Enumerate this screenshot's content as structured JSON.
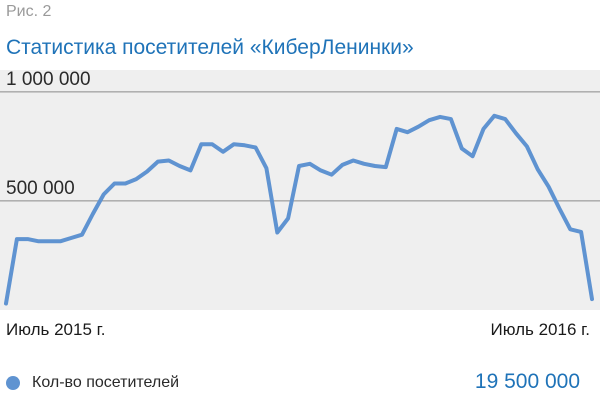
{
  "figure_label": "Рис. 2",
  "chart_data": {
    "type": "line",
    "title": "Статистика посетителей «КиберЛенинки»",
    "xlabel": "",
    "ylabel": "",
    "ylim": [
      0,
      1100000
    ],
    "y_ticks": [
      {
        "value": 1000000,
        "label": "1 000 000"
      },
      {
        "value": 500000,
        "label": "500 000"
      }
    ],
    "x_labels": {
      "start": "Июль 2015 г.",
      "end": "Июль 2016 г."
    },
    "grid": true,
    "legend": {
      "position": "bottom-left",
      "marker_color": "#5f93d1"
    },
    "series": [
      {
        "name": "Кол-во посетителей",
        "color": "#5f93d1",
        "values": [
          30000,
          325000,
          325000,
          315000,
          315000,
          315000,
          330000,
          345000,
          440000,
          530000,
          580000,
          580000,
          600000,
          635000,
          680000,
          685000,
          660000,
          640000,
          760000,
          760000,
          725000,
          760000,
          755000,
          745000,
          650000,
          355000,
          420000,
          660000,
          670000,
          640000,
          620000,
          665000,
          685000,
          670000,
          660000,
          655000,
          830000,
          815000,
          840000,
          870000,
          885000,
          875000,
          740000,
          705000,
          830000,
          890000,
          875000,
          810000,
          750000,
          645000,
          565000,
          465000,
          370000,
          358000,
          50000
        ]
      }
    ],
    "total": "19 500 000"
  }
}
